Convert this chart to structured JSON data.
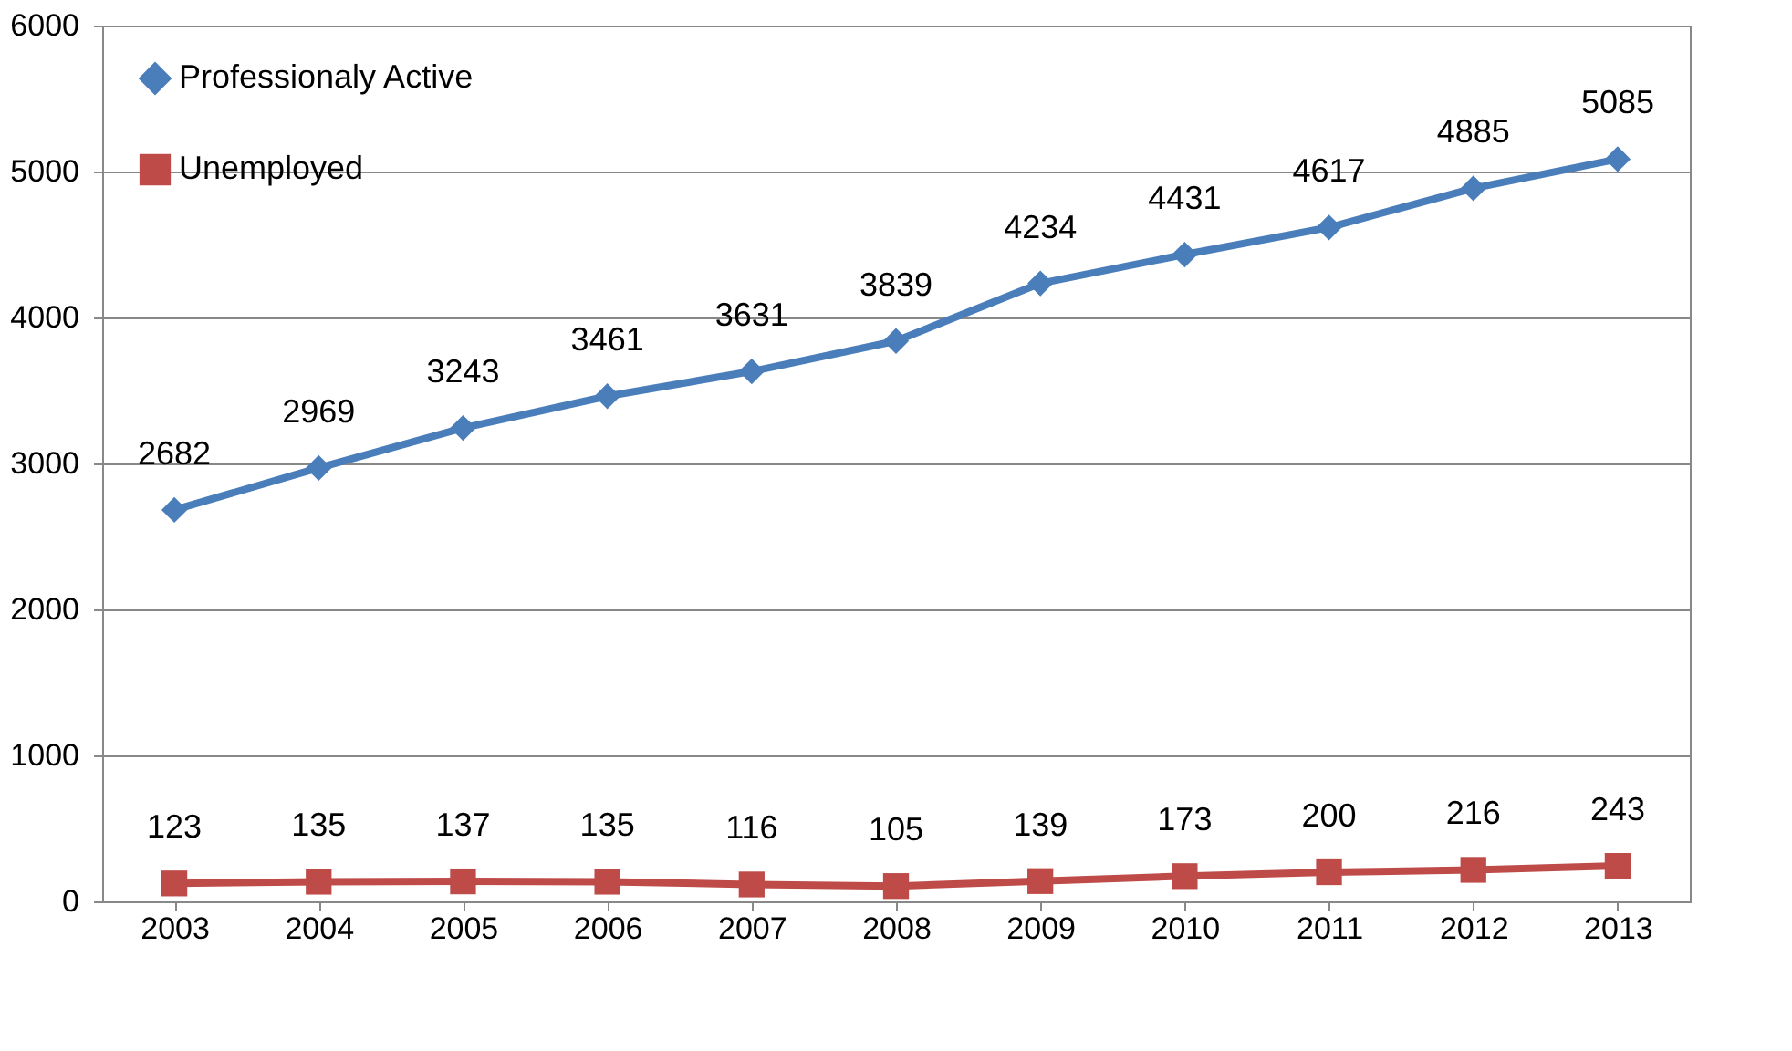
{
  "chart_data": {
    "type": "line",
    "categories": [
      "2003",
      "2004",
      "2005",
      "2006",
      "2007",
      "2008",
      "2009",
      "2010",
      "2011",
      "2012",
      "2013"
    ],
    "series": [
      {
        "name": "Professionaly Active",
        "color": "#4a7ebb",
        "marker": "diamond",
        "values": [
          2682,
          2969,
          3243,
          3461,
          3631,
          3839,
          4234,
          4431,
          4617,
          4885,
          5085
        ]
      },
      {
        "name": "Unemployed",
        "color": "#be4b48",
        "marker": "square",
        "values": [
          123,
          135,
          137,
          135,
          116,
          105,
          139,
          173,
          200,
          216,
          243
        ]
      }
    ],
    "ylim": [
      0,
      6000
    ],
    "yticks": [
      0,
      1000,
      2000,
      3000,
      4000,
      5000,
      6000
    ],
    "grid": "y",
    "legend": "top left",
    "data_labels": true,
    "line_style": "solid"
  }
}
